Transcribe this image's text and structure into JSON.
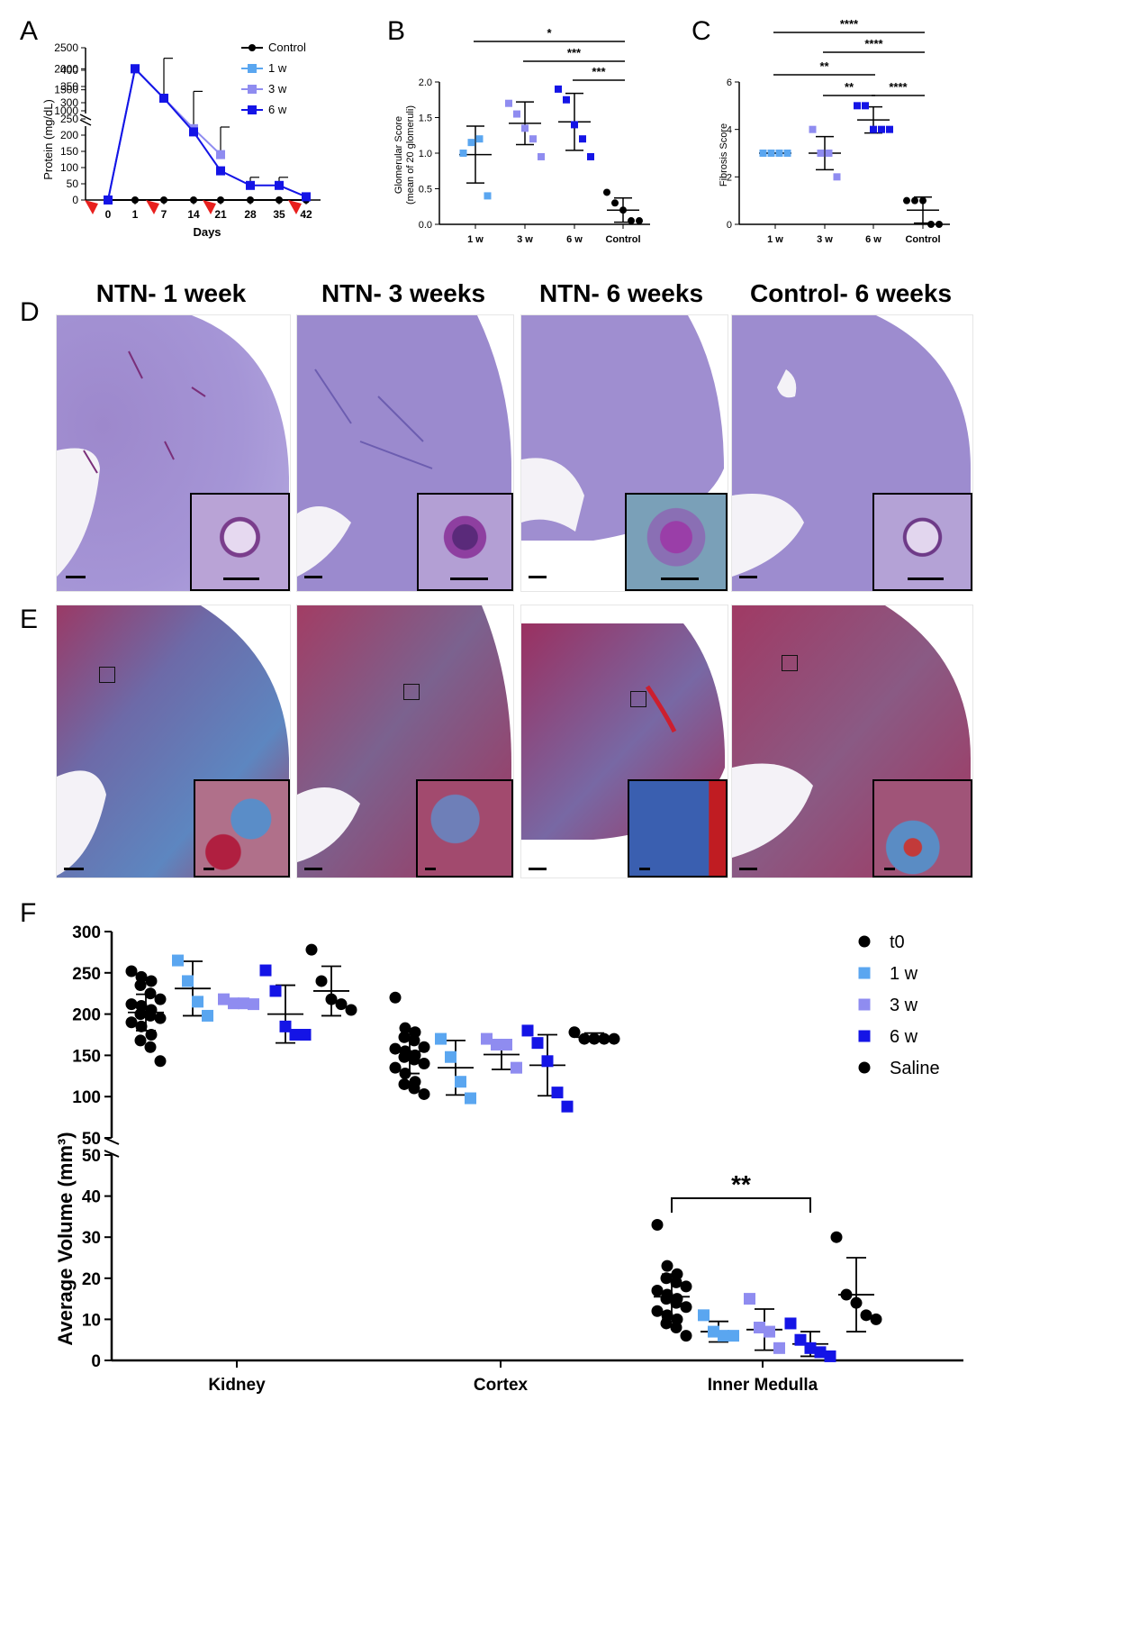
{
  "panels": {
    "A": "A",
    "B": "B",
    "C": "C",
    "D": "D",
    "E": "E",
    "F": "F"
  },
  "colors": {
    "control": "#000000",
    "w1": "#5aa6f0",
    "w3": "#8f8cf0",
    "w6": "#1414e6",
    "arrow": "#e8201e",
    "pas_bg": "#9a8ccf",
    "tri_red": "#b03a62",
    "tri_blue": "#4f8fc8"
  },
  "histology": {
    "columns": [
      "NTN- 1 week",
      "NTN- 3 weeks",
      "NTN- 6 weeks",
      "Control- 6 weeks"
    ]
  },
  "chart_data": [
    {
      "id": "A",
      "type": "line",
      "title": "",
      "xlabel": "Days",
      "ylabel": "Protein (mg/dL)",
      "x": [
        0,
        1,
        7,
        14,
        21,
        28,
        35,
        42
      ],
      "x_tick_labels": [
        "0",
        "1",
        "7",
        "14",
        "21",
        "28",
        "35",
        "42"
      ],
      "y_ticks_upper": [
        "1000",
        "1500",
        "2000",
        "2500"
      ],
      "y_ticks_lower": [
        "0",
        "50",
        "100",
        "150",
        "200",
        "250",
        "300",
        "350",
        "400"
      ],
      "axis_break": true,
      "injection_arrows_at": [
        0,
        7,
        21,
        42
      ],
      "series": [
        {
          "name": "Control",
          "values": [
            0,
            0,
            0,
            0,
            0,
            0,
            0,
            0
          ]
        },
        {
          "name": "1 w",
          "values": [
            0,
            2000,
            1300,
            null,
            null,
            null,
            null,
            null
          ]
        },
        {
          "name": "3 w",
          "values": [
            0,
            2000,
            1300,
            220,
            140,
            null,
            null,
            null
          ]
        },
        {
          "name": "6 w",
          "values": [
            0,
            2000,
            1300,
            210,
            90,
            45,
            45,
            10
          ]
        }
      ]
    },
    {
      "id": "B",
      "type": "scatter",
      "ylabel": "Glomerular Score\n(mean of 20 glomeruli)",
      "categories": [
        "1 w",
        "3 w",
        "6 w",
        "Control"
      ],
      "y_ticks": [
        "0.0",
        "0.5",
        "1.0",
        "1.5",
        "2.0"
      ],
      "ylim": [
        0,
        2.0
      ],
      "means": [
        0.98,
        1.42,
        1.44,
        0.2
      ],
      "sd": [
        0.4,
        0.3,
        0.4,
        0.17
      ],
      "points": [
        [
          1.0,
          1.15,
          1.2,
          0.4
        ],
        [
          1.7,
          1.55,
          1.35,
          1.2,
          0.95
        ],
        [
          1.9,
          1.75,
          1.4,
          1.2,
          0.95
        ],
        [
          0.45,
          0.3,
          0.2,
          0.05,
          0.05
        ]
      ],
      "significance": [
        {
          "from": "1 w",
          "to": "Control",
          "label": "*"
        },
        {
          "from": "3 w",
          "to": "Control",
          "label": "***"
        },
        {
          "from": "6 w",
          "to": "Control",
          "label": "***"
        }
      ]
    },
    {
      "id": "C",
      "type": "scatter",
      "ylabel": "Fibrosis Score",
      "categories": [
        "1 w",
        "3 w",
        "6 w",
        "Control"
      ],
      "y_ticks": [
        "0",
        "2",
        "4",
        "6"
      ],
      "ylim": [
        0,
        6
      ],
      "means": [
        3.0,
        3.0,
        4.4,
        0.6
      ],
      "sd": [
        0.0,
        0.7,
        0.55,
        0.55
      ],
      "points": [
        [
          3,
          3,
          3,
          3
        ],
        [
          4,
          3,
          3,
          2
        ],
        [
          5,
          5,
          4,
          4,
          4
        ],
        [
          1,
          1,
          1,
          0,
          0
        ]
      ],
      "significance": [
        {
          "from": "1 w",
          "to": "Control",
          "label": "****"
        },
        {
          "from": "3 w",
          "to": "Control",
          "label": "****"
        },
        {
          "from": "1 w",
          "to": "6 w",
          "label": "**"
        },
        {
          "from": "3 w",
          "to": "6 w",
          "label": "**"
        },
        {
          "from": "6 w",
          "to": "Control",
          "label": "****"
        }
      ]
    },
    {
      "id": "F",
      "type": "scatter",
      "ylabel": "Average Volume (mm³)",
      "categories": [
        "Kidney",
        "Cortex",
        "Inner Medulla"
      ],
      "groups": [
        "t0",
        "1 w",
        "3 w",
        "6 w",
        "Saline"
      ],
      "y_ticks_upper": [
        "50",
        "100",
        "150",
        "200",
        "250",
        "300"
      ],
      "y_ticks_lower": [
        "0",
        "10",
        "20",
        "30",
        "40",
        "50"
      ],
      "axis_break": true,
      "means": {
        "Kidney": [
          202,
          231,
          213,
          200,
          228
        ],
        "Cortex": [
          155,
          135,
          151,
          138,
          172
        ],
        "Inner Medulla": [
          15.5,
          7,
          7.5,
          4,
          16
        ]
      },
      "sd": {
        "Kidney": [
          22,
          33,
          4,
          35,
          30
        ],
        "Cortex": [
          27,
          33,
          18,
          37,
          5
        ],
        "Inner Medulla": [
          5.5,
          2.5,
          5,
          3,
          9
        ]
      },
      "points": {
        "Kidney": [
          [
            252,
            245,
            240,
            235,
            225,
            218,
            212,
            210,
            205,
            200,
            198,
            195,
            190,
            185,
            175,
            168,
            160,
            143
          ],
          [
            265,
            240,
            215,
            198
          ],
          [
            218,
            213,
            213,
            212
          ],
          [
            253,
            228,
            185,
            175,
            175
          ],
          [
            278,
            240,
            218,
            212,
            205
          ]
        ],
        "Cortex": [
          [
            220,
            183,
            178,
            172,
            168,
            160,
            158,
            155,
            150,
            148,
            145,
            140,
            135,
            128,
            118,
            115,
            110,
            103
          ],
          [
            170,
            148,
            118,
            98
          ],
          [
            170,
            163,
            163,
            135
          ],
          [
            180,
            165,
            143,
            105,
            88
          ],
          [
            178,
            170,
            170,
            170,
            170
          ]
        ],
        "Inner Medulla": [
          [
            33,
            23,
            21,
            20,
            19,
            18,
            17,
            16,
            15,
            15,
            14,
            13,
            12,
            11,
            10,
            9,
            8,
            6
          ],
          [
            11,
            7,
            6,
            6
          ],
          [
            15,
            8,
            7,
            3
          ],
          [
            9,
            5,
            3,
            2,
            1
          ],
          [
            30,
            16,
            14,
            11,
            10
          ]
        ]
      },
      "significance": [
        {
          "from": "t0",
          "to": "6 w",
          "region": "Inner Medulla",
          "label": "**"
        }
      ]
    }
  ]
}
